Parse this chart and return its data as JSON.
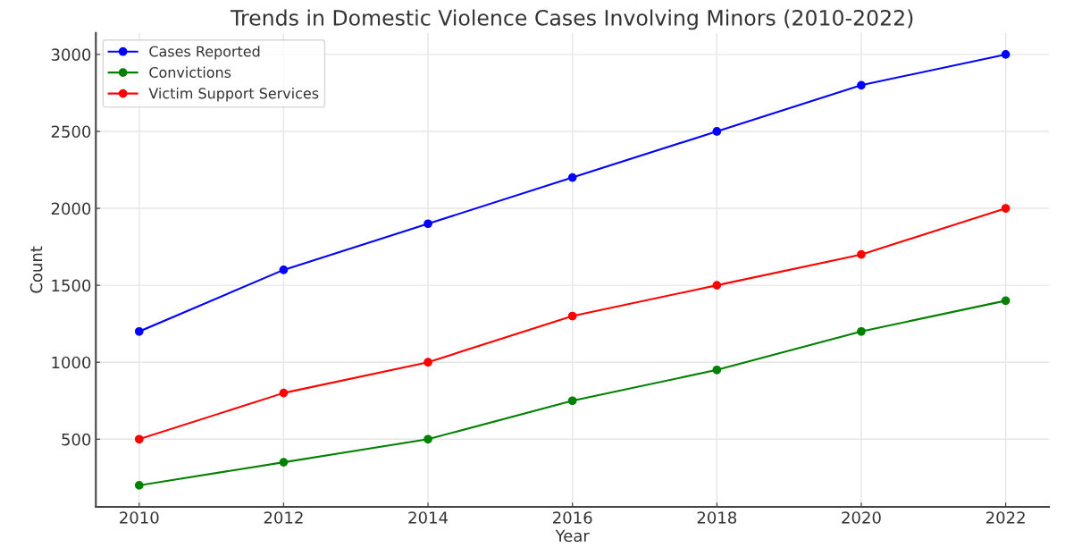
{
  "chart_data": {
    "type": "line",
    "title": "Trends in Domestic Violence Cases Involving Minors (2010-2022)",
    "xlabel": "Year",
    "ylabel": "Count",
    "x": [
      2010,
      2012,
      2014,
      2016,
      2018,
      2020,
      2022
    ],
    "series": [
      {
        "name": "Cases Reported",
        "color": "#0000ff",
        "values": [
          1200,
          1600,
          1900,
          2200,
          2500,
          2800,
          3000
        ]
      },
      {
        "name": "Convictions",
        "color": "#008000",
        "values": [
          200,
          350,
          500,
          750,
          950,
          1200,
          1400
        ]
      },
      {
        "name": "Victim Support Services",
        "color": "#ff0000",
        "values": [
          500,
          800,
          1000,
          1300,
          1500,
          1700,
          2000
        ]
      }
    ],
    "xlim": [
      2009.4,
      2022.6
    ],
    "xticks": [
      2010,
      2012,
      2014,
      2016,
      2018,
      2020,
      2022
    ],
    "ylim": [
      60,
      3140
    ],
    "yticks": [
      500,
      1000,
      1500,
      2000,
      2500,
      3000
    ],
    "grid": true,
    "legend": "top left",
    "marker": "circle",
    "line_style": "solid"
  }
}
